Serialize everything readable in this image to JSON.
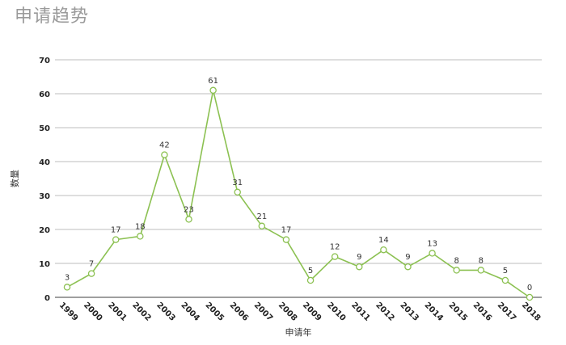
{
  "chart_data": {
    "type": "line",
    "title": "申请趋势",
    "xlabel": "申请年",
    "ylabel": "数量",
    "ylim": [
      0,
      70
    ],
    "yticks": [
      0,
      10,
      20,
      30,
      40,
      50,
      60,
      70
    ],
    "grid": true,
    "categories": [
      "1999",
      "2000",
      "2001",
      "2002",
      "2003",
      "2004",
      "2005",
      "2006",
      "2007",
      "2008",
      "2009",
      "2010",
      "2011",
      "2012",
      "2013",
      "2014",
      "2015",
      "2016",
      "2017",
      "2018"
    ],
    "values": [
      3,
      7,
      17,
      18,
      42,
      23,
      61,
      31,
      21,
      17,
      5,
      12,
      9,
      14,
      9,
      13,
      8,
      8,
      5,
      0
    ],
    "line_color": "#8cc152"
  }
}
